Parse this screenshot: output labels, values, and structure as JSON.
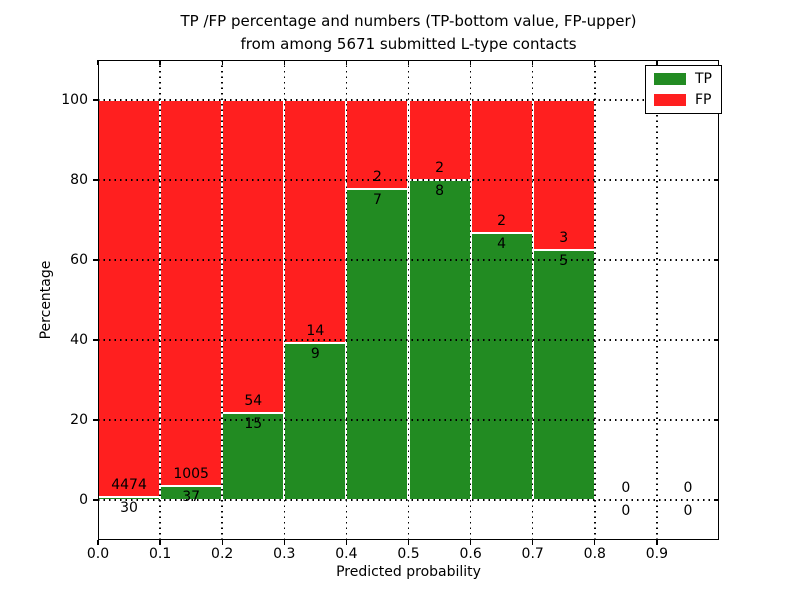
{
  "title": {
    "line1": "TP /FP percentage and numbers (TP-bottom value, FP-upper)",
    "line2": "from among 5671 submitted L-type contacts"
  },
  "axes": {
    "xlabel": "Predicted probability",
    "ylabel": "Percentage",
    "x_ticks": [
      "0.0",
      "0.1",
      "0.2",
      "0.3",
      "0.4",
      "0.5",
      "0.6",
      "0.7",
      "0.8",
      "0.9"
    ],
    "y_ticks": [
      "0",
      "20",
      "40",
      "60",
      "80",
      "100"
    ],
    "grid_style": "dotted"
  },
  "legend": {
    "position": "upper right",
    "entries": [
      {
        "label": "TP",
        "color": "#228b22"
      },
      {
        "label": "FP",
        "color": "#ff1f1f"
      }
    ]
  },
  "chart_data": {
    "type": "bar",
    "stacked": true,
    "normalized_to_percent": true,
    "title": "TP /FP percentage and numbers (TP-bottom value, FP-upper) from among 5671 submitted L-type contacts",
    "xlabel": "Predicted probability",
    "ylabel": "Percentage",
    "total_contacts": 5671,
    "bin_starts": [
      0.0,
      0.1,
      0.2,
      0.3,
      0.4,
      0.5,
      0.6,
      0.7,
      0.8,
      0.9
    ],
    "bin_width": 0.1,
    "series": [
      {
        "name": "TP",
        "color": "#228b22",
        "counts": [
          30,
          37,
          15,
          9,
          7,
          8,
          4,
          5,
          0,
          0
        ]
      },
      {
        "name": "FP",
        "color": "#ff1f1f",
        "counts": [
          4474,
          1005,
          54,
          14,
          2,
          2,
          2,
          3,
          0,
          0
        ]
      }
    ],
    "tp_percent_of_bin": [
      0.67,
      3.55,
      21.74,
      39.13,
      77.78,
      80.0,
      66.67,
      62.5,
      0,
      0
    ],
    "xlim": [
      0,
      1
    ],
    "ylim": [
      -10,
      110
    ],
    "x_tick_values": [
      0.0,
      0.1,
      0.2,
      0.3,
      0.4,
      0.5,
      0.6,
      0.7,
      0.8,
      0.9
    ],
    "y_tick_values": [
      0,
      20,
      40,
      60,
      80,
      100
    ],
    "grid": true,
    "legend_position": "upper right"
  }
}
